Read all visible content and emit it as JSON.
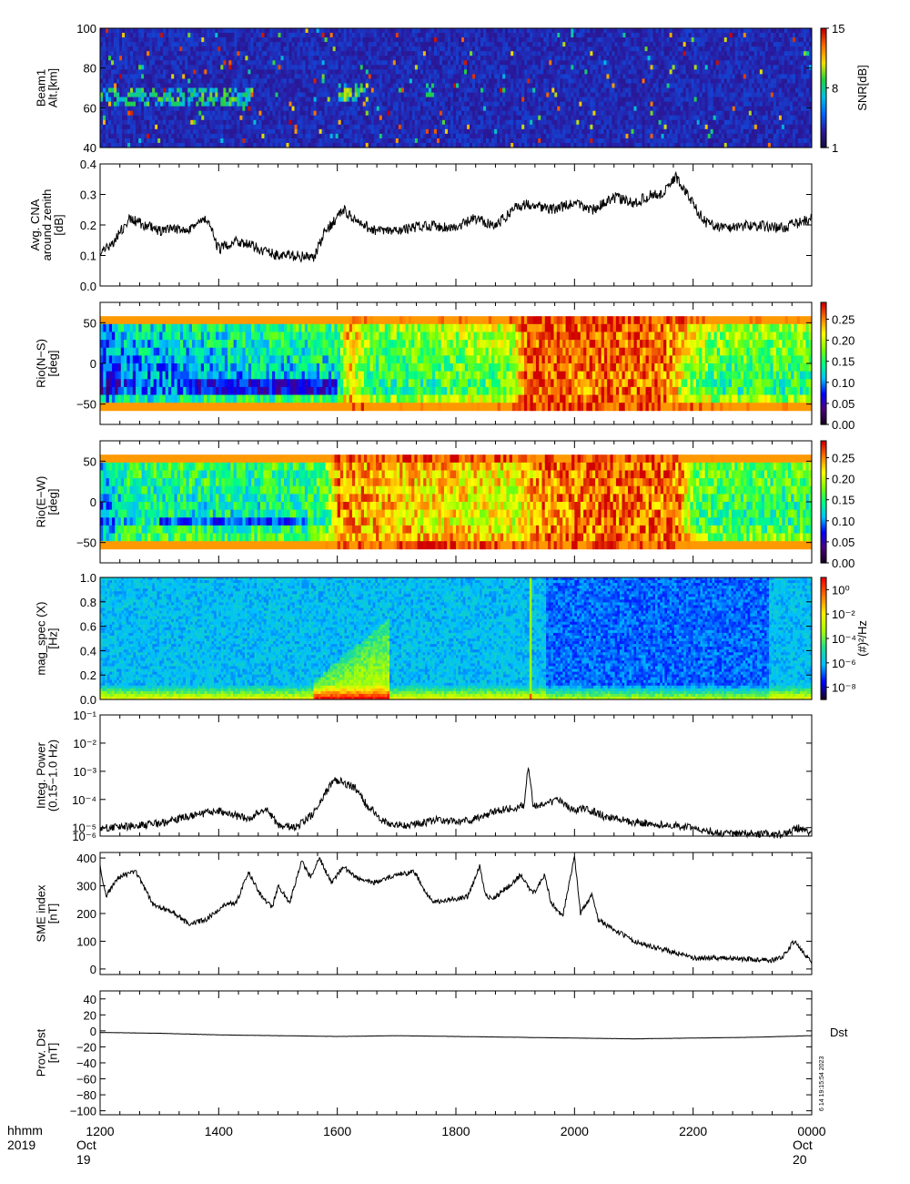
{
  "x_axis": {
    "row1_label": "hhmm",
    "row2_label": "2019",
    "ticks": [
      "1200",
      "1400",
      "1600",
      "1800",
      "2000",
      "2200",
      "0000"
    ],
    "tick_hours": [
      12,
      14,
      16,
      18,
      20,
      22,
      24
    ],
    "start_date": "Oct 19",
    "end_date": "Oct 20",
    "range_hours": [
      12,
      24
    ]
  },
  "stamp": "6 14 19:15:54 2023",
  "colors": {
    "snr": [
      "#1a0a40",
      "#2a1aa0",
      "#0066ff",
      "#00c0e0",
      "#20d040",
      "#f0e000",
      "#ff7000",
      "#c00000"
    ],
    "rainbow": [
      "#150020",
      "#4b0082",
      "#0000ff",
      "#00bfff",
      "#00ff7f",
      "#7fff00",
      "#ffff00",
      "#ff7f00",
      "#d00000"
    ],
    "magspec": [
      "#150020",
      "#0000ff",
      "#00bfff",
      "#20e090",
      "#aaff00",
      "#ffee00",
      "#ff7700",
      "#ff0000"
    ]
  },
  "chart_data": [
    {
      "id": "beam1",
      "type": "heatmap",
      "ylabel": [
        "Beam1",
        "Alt.[km]"
      ],
      "ylim": [
        40,
        100
      ],
      "yticks": [
        40,
        60,
        80,
        100
      ],
      "colorbar": {
        "label": "SNR[dB]",
        "ticks": [
          "1",
          "8",
          "15"
        ],
        "tick_values": [
          1,
          8,
          15
        ],
        "range": [
          1,
          15
        ],
        "palette": "snr"
      },
      "features": [
        {
          "x": [
            12.0,
            14.6
          ],
          "y": [
            60,
            70
          ],
          "level": 0.55
        },
        {
          "x": [
            16.0,
            16.5
          ],
          "y": [
            62,
            72
          ],
          "level": 0.6
        },
        {
          "x": [
            17.5,
            17.7
          ],
          "y": [
            65,
            72
          ],
          "level": 0.7
        },
        {
          "x": [
            19.2,
            19.6
          ],
          "y": [
            76,
            78
          ],
          "level": 0.8
        }
      ]
    },
    {
      "id": "cna",
      "type": "line",
      "ylabel": [
        "Avg. CNA",
        "around zenith",
        "[dB]"
      ],
      "ylim": [
        0.0,
        0.4
      ],
      "yticks": [
        "0.0",
        "0.1",
        "0.2",
        "0.3",
        "0.4"
      ],
      "ytick_values": [
        0.0,
        0.1,
        0.2,
        0.3,
        0.4
      ],
      "x": [
        12.0,
        12.2,
        12.5,
        13.0,
        13.5,
        13.8,
        14.0,
        14.3,
        14.7,
        15.0,
        15.3,
        15.6,
        15.8,
        16.1,
        16.4,
        16.7,
        17.0,
        17.5,
        18.0,
        18.3,
        18.7,
        19.0,
        19.3,
        19.6,
        20.0,
        20.3,
        20.7,
        21.0,
        21.3,
        21.5,
        21.7,
        21.9,
        22.2,
        22.5,
        23.0,
        23.5,
        24.0
      ],
      "values": [
        0.1,
        0.14,
        0.22,
        0.18,
        0.19,
        0.22,
        0.12,
        0.15,
        0.12,
        0.1,
        0.1,
        0.09,
        0.18,
        0.25,
        0.2,
        0.18,
        0.18,
        0.2,
        0.19,
        0.22,
        0.2,
        0.26,
        0.27,
        0.25,
        0.27,
        0.25,
        0.29,
        0.27,
        0.3,
        0.3,
        0.36,
        0.3,
        0.21,
        0.19,
        0.2,
        0.19,
        0.22
      ]
    },
    {
      "id": "rio_ns",
      "type": "heatmap",
      "ylabel": [
        "Rio(N−S)",
        "[deg]"
      ],
      "ylim": [
        -75,
        75
      ],
      "yticks": [
        "−50",
        "0",
        "50"
      ],
      "ytick_values": [
        -50,
        0,
        50
      ],
      "colorbar": {
        "ticks": [
          "0.00",
          "0.05",
          "0.10",
          "0.15",
          "0.20",
          "0.25"
        ],
        "tick_values": [
          0.0,
          0.05,
          0.1,
          0.15,
          0.2,
          0.25
        ],
        "range": [
          0,
          0.29
        ],
        "palette": "rainbow"
      },
      "xtimes": [
        12.0,
        12.5,
        14.0,
        15.0,
        16.0,
        16.2,
        16.6,
        17.0,
        18.0,
        18.9,
        19.2,
        20.5,
        21.5,
        22.0,
        22.5,
        23.0,
        24.0
      ],
      "level": [
        0.3,
        0.4,
        0.45,
        0.48,
        0.5,
        0.82,
        0.6,
        0.6,
        0.64,
        0.66,
        0.92,
        0.92,
        0.9,
        0.7,
        0.6,
        0.62,
        0.6
      ],
      "profile_top": [
        0.92,
        0.62,
        0.55,
        0.5,
        0.45,
        0.4,
        0.35,
        0.3,
        0.25,
        0.2,
        0.6,
        0.92
      ],
      "low_band": {
        "x": [
          13.5,
          16.0
        ],
        "y": [
          -35,
          -15
        ],
        "level": 0.22
      }
    },
    {
      "id": "rio_ew",
      "type": "heatmap",
      "ylabel": [
        "Rio(E−W)",
        "[deg]"
      ],
      "ylim": [
        -75,
        75
      ],
      "yticks": [
        "−50",
        "0",
        "50"
      ],
      "ytick_values": [
        -50,
        0,
        50
      ],
      "colorbar": {
        "ticks": [
          "0.00",
          "0.05",
          "0.10",
          "0.15",
          "0.20",
          "0.25"
        ],
        "tick_values": [
          0.0,
          0.05,
          0.1,
          0.15,
          0.2,
          0.25
        ],
        "range": [
          0,
          0.29
        ],
        "palette": "rainbow"
      },
      "xtimes": [
        12.0,
        12.5,
        14.0,
        15.0,
        15.8,
        16.0,
        17.0,
        18.0,
        19.0,
        19.5,
        20.5,
        21.3,
        21.8,
        22.0,
        22.5,
        23.0,
        24.0
      ],
      "level": [
        0.35,
        0.5,
        0.5,
        0.5,
        0.55,
        0.86,
        0.8,
        0.78,
        0.74,
        0.88,
        0.9,
        0.9,
        0.85,
        0.6,
        0.56,
        0.55,
        0.55
      ],
      "profile_top": [
        0.92,
        0.6,
        0.55,
        0.52,
        0.48,
        0.45,
        0.42,
        0.4,
        0.38,
        0.5,
        0.65,
        0.92
      ],
      "low_band": {
        "x": [
          13.0,
          15.5
        ],
        "y": [
          -30,
          -15
        ],
        "level": 0.3
      }
    },
    {
      "id": "mag_spec",
      "type": "heatmap",
      "ylabel": [
        "mag_spec (X)",
        "[Hz]"
      ],
      "ylim": [
        0.0,
        1.0
      ],
      "yticks": [
        "0.0",
        "0.2",
        "0.4",
        "0.6",
        "0.8",
        "1.0"
      ],
      "ytick_values": [
        0.0,
        0.2,
        0.4,
        0.6,
        0.8,
        1.0
      ],
      "colorbar": {
        "label": "(#)²/Hz",
        "ticks": [
          "10⁰",
          "10⁻²",
          "10⁻⁴",
          "10⁻⁶",
          "10⁻⁸"
        ],
        "tick_values": [
          0,
          -2,
          -4,
          -6,
          -8
        ],
        "range": [
          -9,
          1
        ],
        "palette": "magspec"
      },
      "spike_hour": 19.25
    },
    {
      "id": "integ_power",
      "type": "line",
      "ylabel": [
        "Integ. Power",
        "(0.15−1.0 Hz)"
      ],
      "yscale": "log",
      "ylim_exp": [
        -5.3,
        -1
      ],
      "yticks": [
        "10⁻¹",
        "10⁻²",
        "10⁻³",
        "10⁻⁴",
        "10⁻⁵",
        "10⁻⁶"
      ],
      "ytick_exps": [
        -1,
        -2,
        -3,
        -4,
        -5,
        -5.3
      ],
      "x": [
        12.0,
        12.5,
        13.0,
        13.5,
        14.0,
        14.5,
        14.8,
        15.0,
        15.3,
        15.6,
        15.8,
        15.95,
        16.1,
        16.3,
        16.5,
        16.8,
        17.0,
        17.3,
        17.7,
        18.0,
        18.3,
        18.7,
        19.0,
        19.15,
        19.22,
        19.3,
        19.5,
        19.7,
        20.0,
        20.2,
        20.5,
        21.0,
        21.5,
        22.0,
        22.5,
        23.0,
        23.5,
        23.8,
        24.0
      ],
      "log_values": [
        -5.0,
        -4.95,
        -4.85,
        -4.6,
        -4.4,
        -4.7,
        -4.3,
        -4.9,
        -5.0,
        -4.5,
        -3.8,
        -3.3,
        -3.4,
        -3.6,
        -4.2,
        -4.8,
        -4.9,
        -4.9,
        -4.7,
        -4.8,
        -4.7,
        -4.4,
        -4.3,
        -4.2,
        -2.8,
        -4.2,
        -4.2,
        -4.0,
        -4.4,
        -4.3,
        -4.6,
        -4.8,
        -4.9,
        -5.0,
        -5.2,
        -5.2,
        -5.25,
        -5.0,
        -5.2
      ]
    },
    {
      "id": "sme",
      "type": "line",
      "ylabel": [
        "SME index",
        "[nT]"
      ],
      "ylim": [
        -20,
        420
      ],
      "yticks": [
        "0",
        "100",
        "200",
        "300",
        "400"
      ],
      "ytick_values": [
        0,
        100,
        200,
        300,
        400
      ],
      "x": [
        12.0,
        12.1,
        12.3,
        12.6,
        12.9,
        13.2,
        13.5,
        13.8,
        14.1,
        14.3,
        14.5,
        14.7,
        14.9,
        15.0,
        15.2,
        15.4,
        15.55,
        15.7,
        15.9,
        16.1,
        16.3,
        16.6,
        17.0,
        17.3,
        17.6,
        17.9,
        18.2,
        18.4,
        18.5,
        18.6,
        18.9,
        19.1,
        19.3,
        19.5,
        19.6,
        19.8,
        20.0,
        20.1,
        20.3,
        20.4,
        20.6,
        21.0,
        21.5,
        22.0,
        22.5,
        23.0,
        23.3,
        23.5,
        23.7,
        24.0
      ],
      "values": [
        370,
        260,
        330,
        350,
        230,
        210,
        160,
        180,
        230,
        240,
        350,
        270,
        220,
        300,
        240,
        390,
        330,
        400,
        310,
        370,
        330,
        310,
        340,
        350,
        240,
        250,
        260,
        370,
        270,
        250,
        300,
        340,
        270,
        340,
        240,
        190,
        410,
        200,
        270,
        180,
        150,
        100,
        70,
        40,
        40,
        35,
        30,
        40,
        100,
        25
      ]
    },
    {
      "id": "dst",
      "type": "line",
      "ylabel": [
        "Prov. Dst",
        "[nT]"
      ],
      "ylim": [
        -105,
        50
      ],
      "yticks": [
        "40",
        "20",
        "0",
        "−20",
        "−40",
        "−60",
        "−80",
        "−100"
      ],
      "ytick_values": [
        40,
        20,
        0,
        -20,
        -40,
        -60,
        -80,
        -100
      ],
      "series_label": "Dst",
      "x": [
        12.0,
        13.0,
        14.0,
        15.0,
        16.0,
        17.0,
        18.0,
        19.0,
        20.0,
        21.0,
        22.0,
        23.0,
        24.0
      ],
      "values": [
        -2,
        -3,
        -5,
        -6,
        -7,
        -6,
        -7,
        -8,
        -9,
        -10,
        -9,
        -8,
        -6
      ]
    }
  ]
}
